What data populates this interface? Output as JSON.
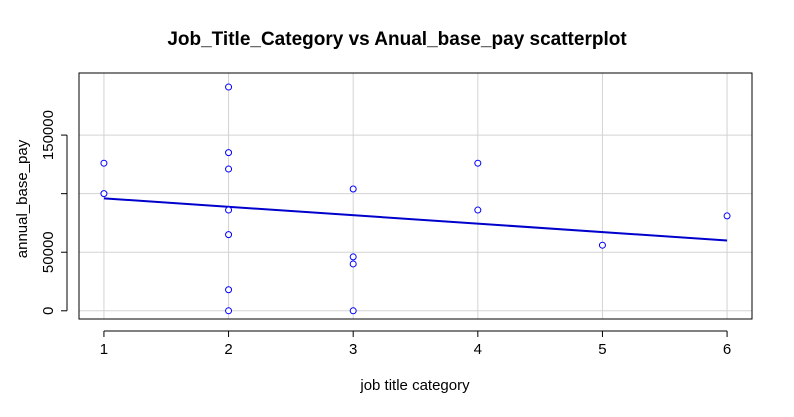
{
  "chart_data": {
    "type": "scatter",
    "title": "Job_Title_Category vs Anual_base_pay scatterplot",
    "xlabel": "job title category",
    "ylabel": "annual_base_pay",
    "xlim": [
      0.8,
      6.2
    ],
    "ylim": [
      -7000,
      203000
    ],
    "x_ticks": [
      1,
      2,
      3,
      4,
      5,
      6
    ],
    "y_ticks": [
      0,
      50000,
      150000
    ],
    "y_tick_labels": [
      "0",
      "50000",
      "150000"
    ],
    "grid": true,
    "points": [
      {
        "x": 1,
        "y": 126000
      },
      {
        "x": 1,
        "y": 100000
      },
      {
        "x": 2,
        "y": 191000
      },
      {
        "x": 2,
        "y": 135000
      },
      {
        "x": 2,
        "y": 121000
      },
      {
        "x": 2,
        "y": 86000
      },
      {
        "x": 2,
        "y": 65000
      },
      {
        "x": 2,
        "y": 18000
      },
      {
        "x": 2,
        "y": 0
      },
      {
        "x": 3,
        "y": 104000
      },
      {
        "x": 3,
        "y": 46000
      },
      {
        "x": 3,
        "y": 40000
      },
      {
        "x": 3,
        "y": 0
      },
      {
        "x": 4,
        "y": 126000
      },
      {
        "x": 4,
        "y": 86000
      },
      {
        "x": 5,
        "y": 56000
      },
      {
        "x": 6,
        "y": 81000
      }
    ],
    "regression_line": {
      "x": [
        1,
        6
      ],
      "y": [
        96000,
        60000
      ]
    },
    "colors": {
      "points": "#0000ff",
      "line": "#0000cc",
      "grid": "#d3d3d3",
      "axis": "#000000"
    }
  }
}
